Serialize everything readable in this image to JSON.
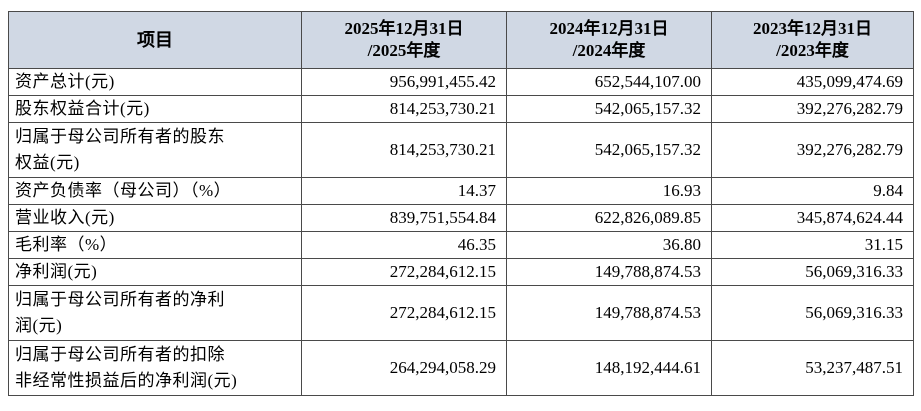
{
  "table": {
    "header": {
      "item": "项目",
      "col1": {
        "line1": "2025年12月31日",
        "line2": "/2025年度"
      },
      "col2": {
        "line1": "2024年12月31日",
        "line2": "/2024年度"
      },
      "col3": {
        "line1": "2023年12月31日",
        "line2": "/2023年度"
      }
    },
    "rows": [
      {
        "label1": "资产总计(元)",
        "label2": "",
        "v2025": "956,991,455.42",
        "v2024": "652,544,107.00",
        "v2023": "435,099,474.69"
      },
      {
        "label1": "股东权益合计(元)",
        "label2": "",
        "v2025": "814,253,730.21",
        "v2024": "542,065,157.32",
        "v2023": "392,276,282.79"
      },
      {
        "label1": "归属于母公司所有者的股东",
        "label2": "权益(元)",
        "v2025": "814,253,730.21",
        "v2024": "542,065,157.32",
        "v2023": "392,276,282.79"
      },
      {
        "label1": "资产负债率（母公司）（%）",
        "label2": "",
        "v2025": "14.37",
        "v2024": "16.93",
        "v2023": "9.84"
      },
      {
        "label1": "营业收入(元)",
        "label2": "",
        "v2025": "839,751,554.84",
        "v2024": "622,826,089.85",
        "v2023": "345,874,624.44"
      },
      {
        "label1": "毛利率（%）",
        "label2": "",
        "v2025": "46.35",
        "v2024": "36.80",
        "v2023": "31.15"
      },
      {
        "label1": "净利润(元)",
        "label2": "",
        "v2025": "272,284,612.15",
        "v2024": "149,788,874.53",
        "v2023": "56,069,316.33"
      },
      {
        "label1": "归属于母公司所有者的净利",
        "label2": "润(元)",
        "v2025": "272,284,612.15",
        "v2024": "149,788,874.53",
        "v2023": "56,069,316.33"
      },
      {
        "label1": "归属于母公司所有者的扣除",
        "label2": "非经常性损益后的净利润(元)",
        "v2025": "264,294,058.29",
        "v2024": "148,192,444.61",
        "v2023": "53,237,487.51"
      }
    ]
  }
}
